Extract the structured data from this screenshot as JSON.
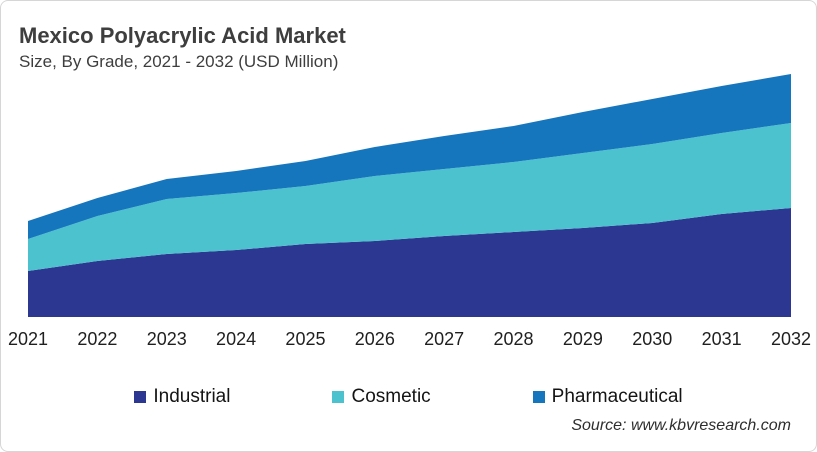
{
  "header": {
    "title": "Mexico Polyacrylic Acid Market",
    "subtitle": "Size, By Grade, 2021 - 2032 (USD Million)"
  },
  "source": "Source: www.kbvresearch.com",
  "colors": {
    "industrial": "#2c3792",
    "cosmetic": "#4cc2ce",
    "pharmaceutical": "#1676bd",
    "heading_text": "#3e3e3e",
    "axis_text": "#1f1f1f",
    "card_border": "#d6d6d6"
  },
  "legend": [
    {
      "label": "Industrial",
      "color": "#2c3792"
    },
    {
      "label": "Cosmetic",
      "color": "#4cc2ce"
    },
    {
      "label": "Pharmaceutical",
      "color": "#1676bd"
    }
  ],
  "chart_data": {
    "type": "area",
    "stacked": true,
    "title": "Mexico Polyacrylic Acid Market",
    "subtitle": "Size, By Grade, 2021 - 2032 (USD Million)",
    "xlabel": "",
    "ylabel": "USD Million",
    "units": "USD Million (estimated; y-axis not labeled in source image)",
    "grid": false,
    "legend_position": "bottom",
    "x": [
      2021,
      2022,
      2023,
      2024,
      2025,
      2026,
      2027,
      2028,
      2029,
      2030,
      2031,
      2032
    ],
    "ylim": [
      0,
      260
    ],
    "series": [
      {
        "name": "Industrial",
        "color": "#2c3792",
        "values": [
          46,
          56,
          63,
          67,
          73,
          76,
          81,
          85,
          89,
          94,
          103,
          109
        ]
      },
      {
        "name": "Cosmetic",
        "color": "#4cc2ce",
        "values": [
          32,
          45,
          55,
          57,
          58,
          65,
          67,
          70,
          75,
          79,
          81,
          85
        ]
      },
      {
        "name": "Pharmaceutical",
        "color": "#1676bd",
        "values": [
          18,
          18,
          20,
          22,
          25,
          29,
          33,
          36,
          41,
          45,
          47,
          49
        ]
      }
    ],
    "totals": [
      96,
      119,
      138,
      146,
      156,
      170,
      181,
      191,
      205,
      218,
      231,
      243
    ]
  }
}
